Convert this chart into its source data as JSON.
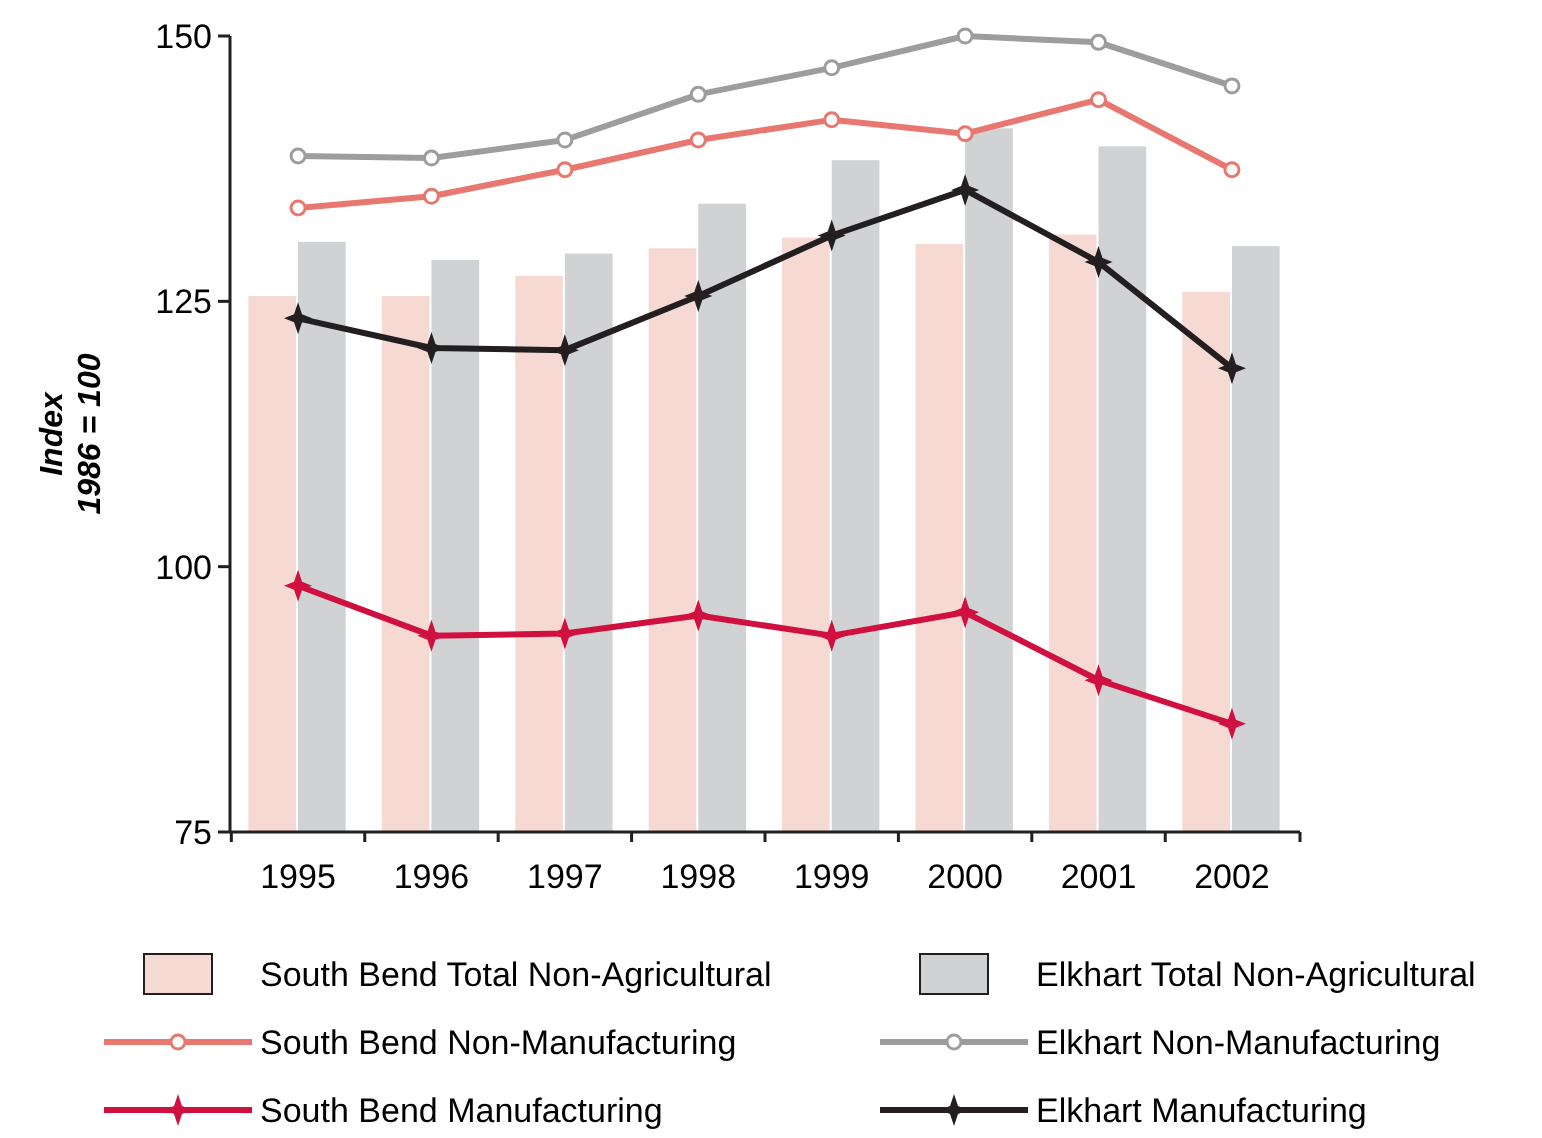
{
  "chart_data": {
    "type": "bar",
    "ylabel": "Index\n1986 = 100",
    "categories": [
      "1995",
      "1996",
      "1997",
      "1998",
      "1999",
      "2000",
      "2001",
      "2002"
    ],
    "ylim": [
      75,
      150
    ],
    "yticks": [
      75,
      100,
      125,
      150
    ],
    "grid": false,
    "legend": "bottom",
    "series": [
      {
        "name": "South Bend Total Non-Agricultural",
        "color": "#f7d9d3",
        "values": [
          125.5,
          125.5,
          127.4,
          130,
          131,
          130.4,
          131.3,
          125.9
        ]
      },
      {
        "name": "Elkhart Total Non-Agricultural",
        "color": "#d1d2d4",
        "values": [
          130.6,
          128.9,
          129.5,
          134.2,
          138.3,
          141.3,
          139.6,
          130.2
        ]
      },
      {
        "name": "South Bend Non-Manufacturing",
        "type": "line",
        "marker": "circle",
        "color": "#e8776f",
        "values": [
          133.8,
          134.9,
          137.4,
          140.2,
          142.1,
          140.8,
          144,
          137.4
        ]
      },
      {
        "name": "Elkhart Non-Manufacturing",
        "type": "line",
        "marker": "circle",
        "color": "#9d9d9f",
        "values": [
          138.7,
          138.5,
          140.2,
          144.5,
          147,
          150,
          149.4,
          145.3
        ]
      },
      {
        "name": "South Bend Manufacturing",
        "type": "line",
        "marker": "star",
        "color": "#d0103f",
        "values": [
          98.2,
          93.5,
          93.7,
          95.4,
          93.5,
          95.7,
          89.3,
          85.2
        ]
      },
      {
        "name": "Elkhart Manufacturing",
        "type": "line",
        "marker": "star",
        "color": "#231f20",
        "values": [
          123.4,
          120.6,
          120.4,
          125.5,
          131.2,
          135.5,
          128.7,
          118.7
        ]
      }
    ]
  }
}
